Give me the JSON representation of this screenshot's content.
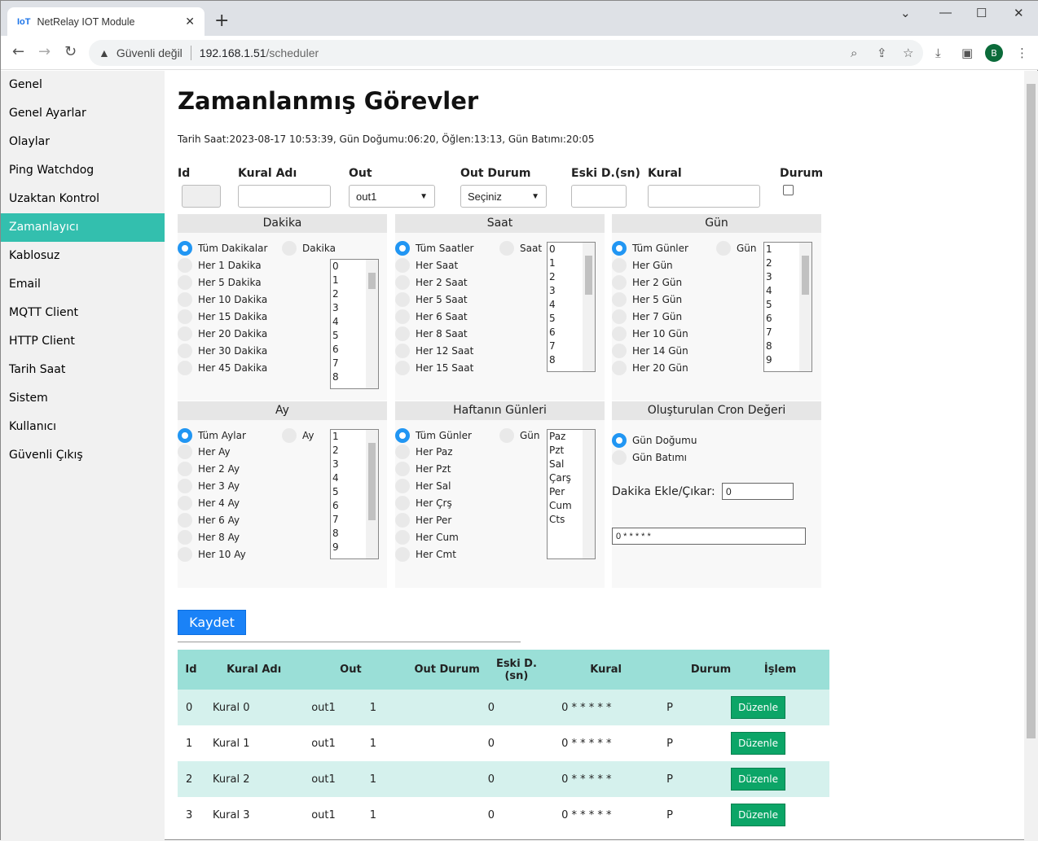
{
  "browser": {
    "tab_title": "NetRelay IOT Module",
    "favicon": "IoT",
    "security": "Güvenli değil",
    "host": "192.168.1.51",
    "path": "/scheduler",
    "avatar": "B"
  },
  "sidebar": {
    "items": [
      "Genel",
      "Genel Ayarlar",
      "Olaylar",
      "Ping Watchdog",
      "Uzaktan Kontrol",
      "Zamanlayıcı",
      "Kablosuz",
      "Email",
      "MQTT Client",
      "HTTP Client",
      "Tarih Saat",
      "Sistem",
      "Kullanıcı",
      "Güvenli Çıkış"
    ],
    "active": 5,
    "active_color": "#33bfae"
  },
  "page": {
    "title": "Zamanlanmış Görevler",
    "info": "Tarih Saat:2023-08-17 10:53:39, Gün Doğumu:06:20, Öğlen:13:13, Gün Batımı:20:05"
  },
  "form": {
    "labels": [
      "Id",
      "Kural Adı",
      "Out",
      "Out Durum",
      "Eski D.(sn)",
      "Kural",
      "Durum"
    ],
    "id_value": "",
    "name_value": "",
    "out_selected": "out1",
    "out_durum_selected": "Seçiniz",
    "eski_value": "",
    "kural_value": "",
    "durum_checked": false
  },
  "panels": [
    {
      "title": "Dakika",
      "radios": [
        "Tüm Dakikalar",
        "Her 1 Dakika",
        "Her 5 Dakika",
        "Her 10 Dakika",
        "Her 15 Dakika",
        "Her 20 Dakika",
        "Her 30 Dakika",
        "Her 45 Dakika"
      ],
      "single": "Dakika",
      "options": [
        "0",
        "1",
        "2",
        "3",
        "4",
        "5",
        "6",
        "7",
        "8"
      ]
    },
    {
      "title": "Saat",
      "radios": [
        "Tüm Saatler",
        "Her Saat",
        "Her 2 Saat",
        "Her 5 Saat",
        "Her 6 Saat",
        "Her 8 Saat",
        "Her 12 Saat",
        "Her 15 Saat"
      ],
      "single": "Saat",
      "options": [
        "0",
        "1",
        "2",
        "3",
        "4",
        "5",
        "6",
        "7",
        "8"
      ]
    },
    {
      "title": "Gün",
      "radios": [
        "Tüm Günler",
        "Her Gün",
        "Her 2 Gün",
        "Her 5 Gün",
        "Her 7 Gün",
        "Her 10 Gün",
        "Her 14 Gün",
        "Her 20 Gün"
      ],
      "single": "Gün",
      "options": [
        "1",
        "2",
        "3",
        "4",
        "5",
        "6",
        "7",
        "8",
        "9"
      ]
    },
    {
      "title": "Ay",
      "radios": [
        "Tüm Aylar",
        "Her Ay",
        "Her 2 Ay",
        "Her 3 Ay",
        "Her 4 Ay",
        "Her 6 Ay",
        "Her 8 Ay",
        "Her 10 Ay"
      ],
      "single": "Ay",
      "options": [
        "1",
        "2",
        "3",
        "4",
        "5",
        "6",
        "7",
        "8",
        "9"
      ]
    },
    {
      "title": "Haftanın Günleri",
      "radios": [
        "Tüm Günler",
        "Her Paz",
        "Her Pzt",
        "Her Sal",
        "Her Çrş",
        "Her Per",
        "Her Cum",
        "Her Cmt"
      ],
      "single": "Gün",
      "options": [
        "Paz",
        "Pzt",
        "Sal",
        "Çarş",
        "Per",
        "Cum",
        "Cts"
      ]
    }
  ],
  "cron": {
    "title": "Oluşturulan Cron Değeri",
    "radios": [
      "Gün Doğumu",
      "Gün Batımı"
    ],
    "offset_label": "Dakika Ekle/Çıkar:",
    "offset_value": "0",
    "cron_value": "0 * * * * *"
  },
  "save_label": "Kaydet",
  "table": {
    "headers": [
      "Id",
      "Kural Adı",
      "Out",
      "Out Durum",
      "Eski D.\n(sn)",
      "Kural",
      "Durum",
      "İşlem"
    ],
    "rows": [
      [
        "0",
        "Kural 0",
        "out1",
        "1",
        "0",
        "0 * * * * *",
        "P"
      ],
      [
        "1",
        "Kural 1",
        "out1",
        "1",
        "0",
        "0 * * * * *",
        "P"
      ],
      [
        "2",
        "Kural 2",
        "out1",
        "1",
        "0",
        "0 * * * * *",
        "P"
      ],
      [
        "3",
        "Kural 3",
        "out1",
        "1",
        "0",
        "0 * * * * *",
        "P"
      ]
    ],
    "action_label": "Düzenle",
    "header_color": "#9adfd7",
    "button_color": "#0ca567"
  }
}
